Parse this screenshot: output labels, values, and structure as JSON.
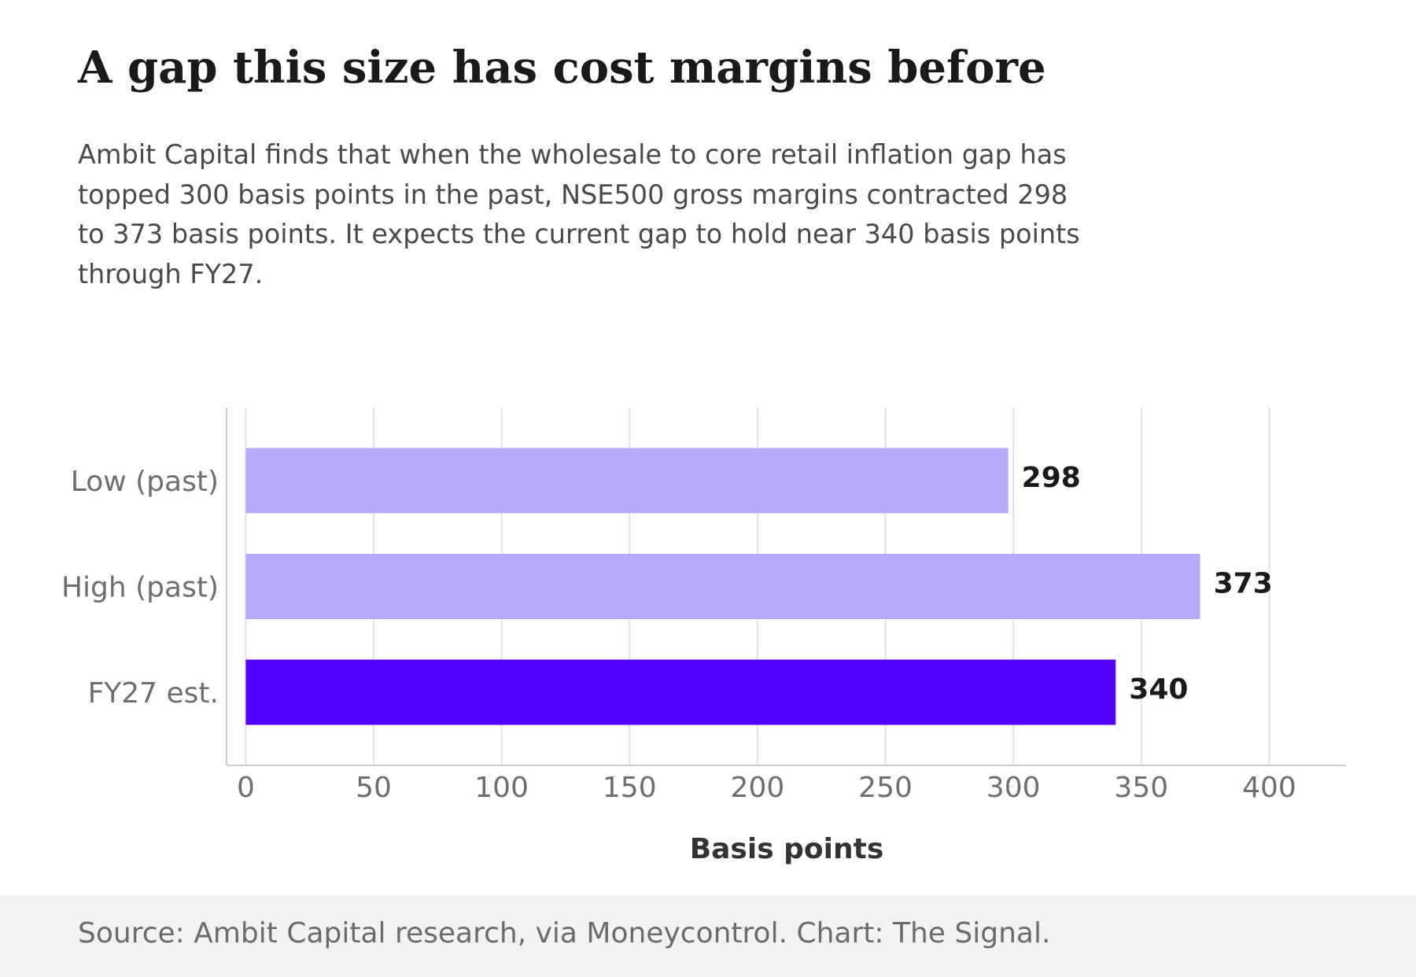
{
  "title": "A gap this size has cost margins before",
  "subtitle": "Ambit Capital finds that when the wholesale to core retail inflation gap has topped 300 basis points in the past, NSE500 gross margins contracted 298 to 373 basis points. It expects the current gap to hold near 340 basis points through FY27.",
  "source": "Source: Ambit Capital research, via Moneycontrol. Chart: The Signal.",
  "chart_data": {
    "type": "bar",
    "orientation": "horizontal",
    "categories": [
      "Low (past)",
      "High (past)",
      "FY27 est."
    ],
    "values": [
      298,
      373,
      340
    ],
    "data_labels": [
      "298",
      "373",
      "340"
    ],
    "colors": [
      "#b8a9fc",
      "#b8a9fc",
      "#5200ff"
    ],
    "xlabel": "Basis points",
    "ylabel": "",
    "xlim": [
      -7.5,
      430
    ],
    "xticks": [
      0,
      50,
      100,
      150,
      200,
      250,
      300,
      350,
      400
    ],
    "xtick_labels": [
      "0",
      "50",
      "100",
      "150",
      "200",
      "250",
      "300",
      "350",
      "400"
    ],
    "grid": "vertical",
    "colors_meta": {
      "gridline": "#e4e4e4",
      "axis": "#cfcfcf",
      "tick_text": "#6e6e6e",
      "label_text": "#1a1a1a",
      "axis_title": "#333333"
    }
  }
}
